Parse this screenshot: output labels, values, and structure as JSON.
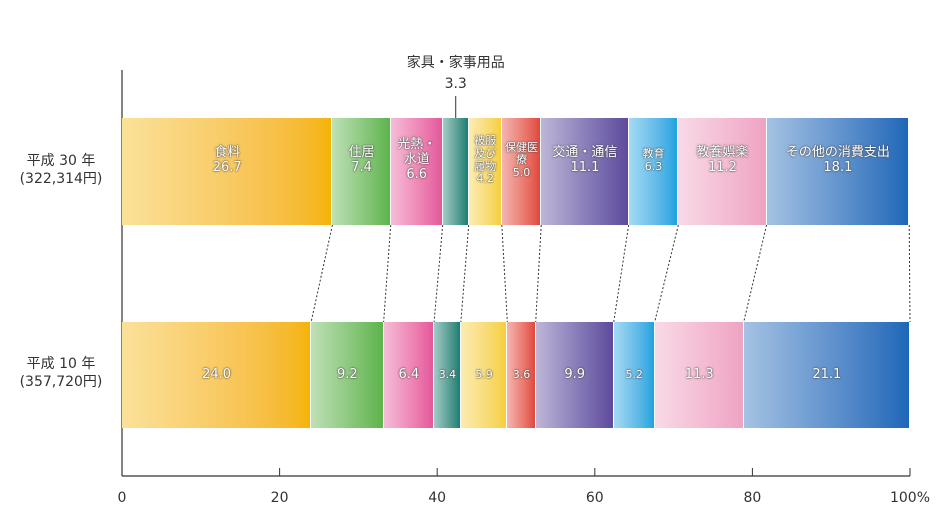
{
  "chart_data": {
    "type": "stacked_bar_100",
    "categories": [
      "食料",
      "住居",
      "光熱・水道",
      "家具・家事用品",
      "被服及び履物",
      "保健医療",
      "交通・通信",
      "教育",
      "教養娯楽",
      "その他の消費支出"
    ],
    "colors": [
      "#f5b400",
      "#5db34a",
      "#e4579b",
      "#127f72",
      "#f6cf3a",
      "#e0473d",
      "#5e4a9c",
      "#1aa3e0",
      "#eea3c3",
      "#1d67b8"
    ],
    "series": [
      {
        "name": "平成 30 年",
        "total_label": "(322,314円)",
        "values": [
          26.7,
          7.4,
          6.6,
          3.3,
          4.2,
          5.0,
          11.1,
          6.3,
          11.2,
          18.1
        ],
        "value_labels": [
          "26.7",
          "7.4",
          "6.6",
          "3.3",
          "4.2",
          "5.0",
          "11.1",
          "6.3",
          "11.2",
          "18.1"
        ]
      },
      {
        "name": "平成 10 年",
        "total_label": "(357,720円)",
        "values": [
          24.0,
          9.2,
          6.4,
          3.4,
          5.9,
          3.6,
          9.9,
          5.2,
          11.3,
          21.1
        ],
        "value_labels": [
          "24.0",
          "9.2",
          "6.4",
          "3.4",
          "5.9",
          "3.6",
          "9.9",
          "5.2",
          "11.3",
          "21.1"
        ]
      }
    ],
    "xlim": [
      0,
      100
    ],
    "xticks": [
      0,
      20,
      40,
      60,
      80,
      {
        "value": 100,
        "label": "100%"
      }
    ]
  }
}
